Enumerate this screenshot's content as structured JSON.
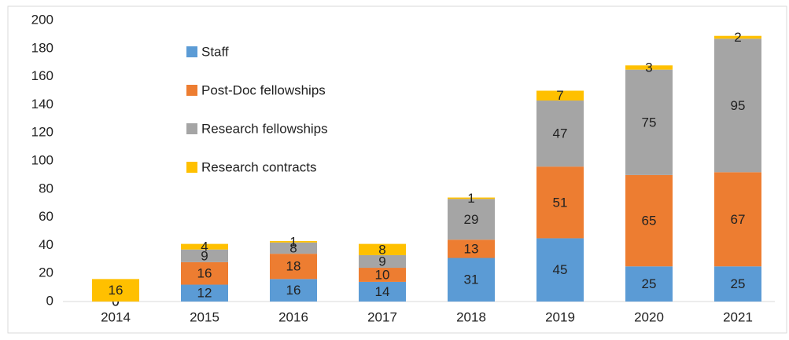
{
  "chart_data": {
    "type": "stacked_bar",
    "categories": [
      "2014",
      "2015",
      "2016",
      "2017",
      "2018",
      "2019",
      "2020",
      "2021"
    ],
    "series": [
      {
        "name": "Staff",
        "color": "#5b9bd5",
        "values": [
          0,
          12,
          16,
          14,
          31,
          45,
          25,
          25
        ]
      },
      {
        "name": "Post-Doc fellowships",
        "color": "#ed7d31",
        "values": [
          0,
          16,
          18,
          10,
          13,
          51,
          65,
          67
        ]
      },
      {
        "name": "Research fellowships",
        "color": "#a5a5a5",
        "values": [
          0,
          9,
          8,
          9,
          29,
          47,
          75,
          95
        ]
      },
      {
        "name": "Research contracts",
        "color": "#ffc000",
        "values": [
          16,
          4,
          1,
          8,
          1,
          7,
          3,
          2
        ]
      }
    ],
    "ylim": [
      0,
      200
    ],
    "yticks": [
      0,
      20,
      40,
      60,
      80,
      100,
      120,
      140,
      160,
      180,
      200
    ],
    "legend": "upper left",
    "grid": false
  }
}
